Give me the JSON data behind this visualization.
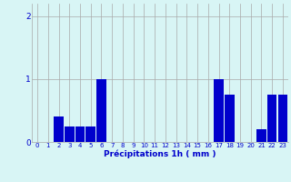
{
  "values": [
    0,
    0,
    0.4,
    0.25,
    0.25,
    0.25,
    1.0,
    0,
    0,
    0,
    0,
    0,
    0,
    0,
    0,
    0,
    0,
    1.0,
    0.75,
    0,
    0,
    0.2,
    0.75,
    0.75
  ],
  "bar_color": "#0000cc",
  "background_color": "#d8f5f5",
  "grid_color": "#aaaaaa",
  "xlabel": "Précipitations 1h ( mm )",
  "xlabel_color": "#0000cc",
  "tick_color": "#0000cc",
  "ylim": [
    0,
    2.2
  ],
  "yticks": [
    0,
    1,
    2
  ],
  "figsize": [
    3.2,
    2.0
  ],
  "dpi": 100
}
